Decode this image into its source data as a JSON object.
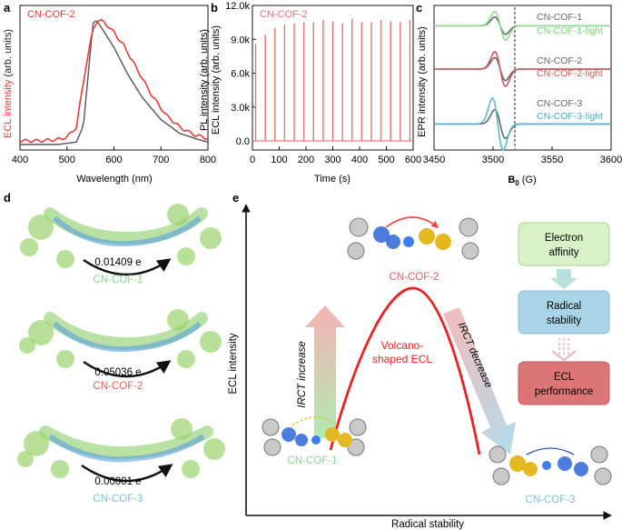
{
  "panels": {
    "a": "a",
    "b": "b",
    "c": "c",
    "d": "d",
    "e": "e"
  },
  "panel_a": {
    "legend": "CN-COF-2",
    "ylabel_ecl": "ECL intensity",
    "ylabel_arb": " (arb. units)",
    "xlabel": "Wavelength (nm)",
    "xticks": [
      "400",
      "500",
      "600",
      "700",
      "800"
    ]
  },
  "panel_b": {
    "legend": "CN-COF-2",
    "ylabel_pl": "PL intensity (arb. units)",
    "ylabel_ecl": "ECL intensity (arb. units)",
    "xlabel": "Time (s)",
    "xticks": [
      "0",
      "100",
      "200",
      "300",
      "400",
      "500",
      "600"
    ],
    "yticks": [
      "0.0",
      "3.0k",
      "6.0k",
      "9.0k",
      "12.0k"
    ]
  },
  "panel_c": {
    "ylabel": "EPR intensity (arb. units)",
    "xlabel_main": "B",
    "xlabel_sub": "0",
    "xlabel_unit": " (G)",
    "xticks": [
      "3450",
      "3500",
      "3550",
      "3600"
    ],
    "labels": [
      "CN-COF-1",
      "CN-COF-1-light",
      "CN-COF-2",
      "CN-COF-2-light",
      "CN-COF-3",
      "CN-COF-3-light"
    ]
  },
  "panel_d": {
    "items": [
      {
        "charge": "0.01409 e",
        "name": "CN-COF-1"
      },
      {
        "charge": "0.05036 e",
        "name": "CN-COF-2"
      },
      {
        "charge": "0.00001 e",
        "name": "CN-COF-3"
      }
    ]
  },
  "panel_e": {
    "ylabel": "ECL intensity",
    "xlabel": "Radical stability",
    "top_label": "CN-COF-2",
    "left_label": "CN-COF-1",
    "right_label": "CN-COF-3",
    "increase": "IRCT increase",
    "decrease": "IRCT  decrease",
    "volcano_1": "Volcano-",
    "volcano_2": "shaped ECL",
    "box1_1": "Electron",
    "box1_2": "affinity",
    "box2_1": "Radical",
    "box2_2": "stability",
    "box3_1": "ECL",
    "box3_2": "performance"
  },
  "chart_data": [
    {
      "type": "line",
      "title": "",
      "xlabel": "Wavelength (nm)",
      "ylabel": "ECL intensity (arb. units)",
      "xlim": [
        400,
        800
      ],
      "series": [
        {
          "name": "ECL (CN-COF-2)",
          "color": "#e63b3b",
          "x": [
            400,
            440,
            480,
            500,
            520,
            540,
            555,
            565,
            580,
            600,
            620,
            650,
            680,
            710,
            740,
            770,
            800
          ],
          "y": [
            0.03,
            0.03,
            0.04,
            0.06,
            0.14,
            0.62,
            0.92,
            1.0,
            0.98,
            0.9,
            0.8,
            0.6,
            0.4,
            0.24,
            0.14,
            0.08,
            0.05
          ]
        },
        {
          "name": "PL",
          "color": "#555555",
          "x": [
            400,
            480,
            520,
            535,
            545,
            555,
            562,
            575,
            600,
            630,
            660,
            700,
            740,
            780,
            800
          ],
          "y": [
            0.0,
            0.0,
            0.02,
            0.15,
            0.55,
            0.97,
            1.0,
            0.93,
            0.78,
            0.56,
            0.38,
            0.2,
            0.09,
            0.04,
            0.02
          ]
        }
      ]
    },
    {
      "type": "line",
      "title": "",
      "xlabel": "Time (s)",
      "ylabel": "ECL intensity (arb. units)",
      "xlim": [
        0,
        600
      ],
      "ylim": [
        -800,
        12000
      ],
      "series": [
        {
          "name": "CN-COF-2",
          "color": "#e57373",
          "peak_times": [
            12,
            48,
            84,
            120,
            156,
            192,
            228,
            264,
            300,
            336,
            372,
            408,
            444,
            480,
            516,
            552,
            588
          ],
          "peak_values": [
            8600,
            9400,
            10000,
            10300,
            10400,
            10500,
            10500,
            10700,
            10600,
            10400,
            10800,
            10500,
            10500,
            10700,
            10600,
            10500,
            10700
          ]
        }
      ]
    },
    {
      "type": "line",
      "title": "",
      "xlabel": "B0 (G)",
      "ylabel": "EPR intensity (arb. units)",
      "xlim": [
        3450,
        3600
      ],
      "series": [
        {
          "name": "CN-COF-1",
          "color": "#666666",
          "offset": 0.86,
          "pos": 3506,
          "amp": 0.06
        },
        {
          "name": "CN-COF-1-light",
          "color": "#8ede8e",
          "offset": 0.86,
          "pos": 3506,
          "amp": 0.1
        },
        {
          "name": "CN-COF-2",
          "color": "#666666",
          "offset": 0.56,
          "pos": 3506,
          "amp": 0.08
        },
        {
          "name": "CN-COF-2-light",
          "color": "#c95c5c",
          "offset": 0.56,
          "pos": 3506,
          "amp": 0.12
        },
        {
          "name": "CN-COF-3",
          "color": "#666666",
          "offset": 0.18,
          "pos": 3506,
          "amp": 0.1
        },
        {
          "name": "CN-COF-3-light",
          "color": "#63b7c9",
          "offset": 0.18,
          "pos": 3504,
          "amp": 0.18
        }
      ]
    }
  ]
}
